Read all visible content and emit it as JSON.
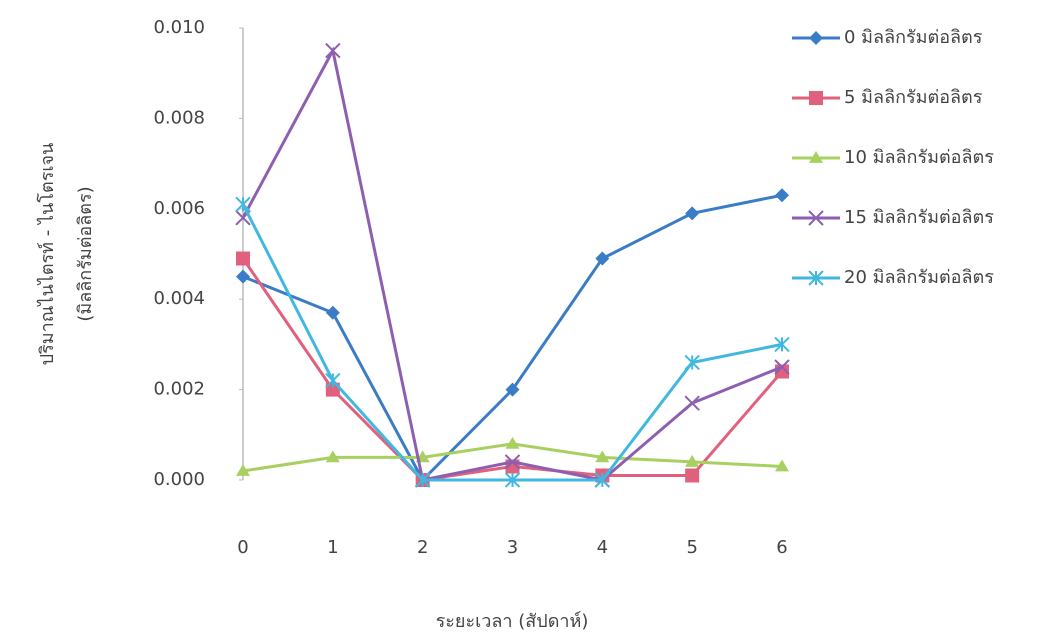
{
  "chart_data": {
    "type": "line",
    "y_label": [
      "ปริมาณไนไตรท์ - ไนโตรเจน",
      "(มิลลิกรัมต่อลิตร)"
    ],
    "x_label": "ระยะเวลา (สัปดาห์)",
    "categories": [
      "0",
      "1",
      "2",
      "3",
      "4",
      "5",
      "6"
    ],
    "ylim": [
      0,
      0.01
    ],
    "yticks": [
      {
        "value": 0,
        "label": "0.000"
      },
      0.002,
      0.004,
      0.006,
      0.008,
      {
        "value": 0.01,
        "label": "0.010"
      }
    ],
    "legend": "right",
    "series": [
      {
        "name": "0 มิลลิกรัมต่อลิตร",
        "color": "#3b7cc6",
        "marker": "diamond",
        "values": [
          0.0045,
          0.0037,
          0,
          0.002,
          0.0049,
          0.0059,
          0.0063
        ]
      },
      {
        "name": "5 มิลลิกรัมต่อลิตร",
        "color": "#e0607e",
        "marker": "square",
        "values": [
          0.0049,
          0.002,
          0,
          0.0003,
          0.0001,
          0.0001,
          0.0024
        ]
      },
      {
        "name": "10 มิลลิกรัมต่อลิตร",
        "color": "#a8d060",
        "marker": "triangle",
        "values": [
          0.0002,
          0.0005,
          0.0005,
          0.0008,
          0.0005,
          0.0004,
          0.0003
        ]
      },
      {
        "name": "15 มิลลิกรัมต่อลิตร",
        "color": "#8e5fb0",
        "marker": "x",
        "values": [
          0.0058,
          0.0095,
          0,
          0.0004,
          0,
          0.0017,
          0.0025
        ]
      },
      {
        "name": "20 มิลลิกรัมต่อลิตร",
        "color": "#40b8e0",
        "marker": "star",
        "values": [
          0.0061,
          0.0022,
          0,
          0,
          0,
          0.0026,
          0.003
        ]
      }
    ]
  }
}
